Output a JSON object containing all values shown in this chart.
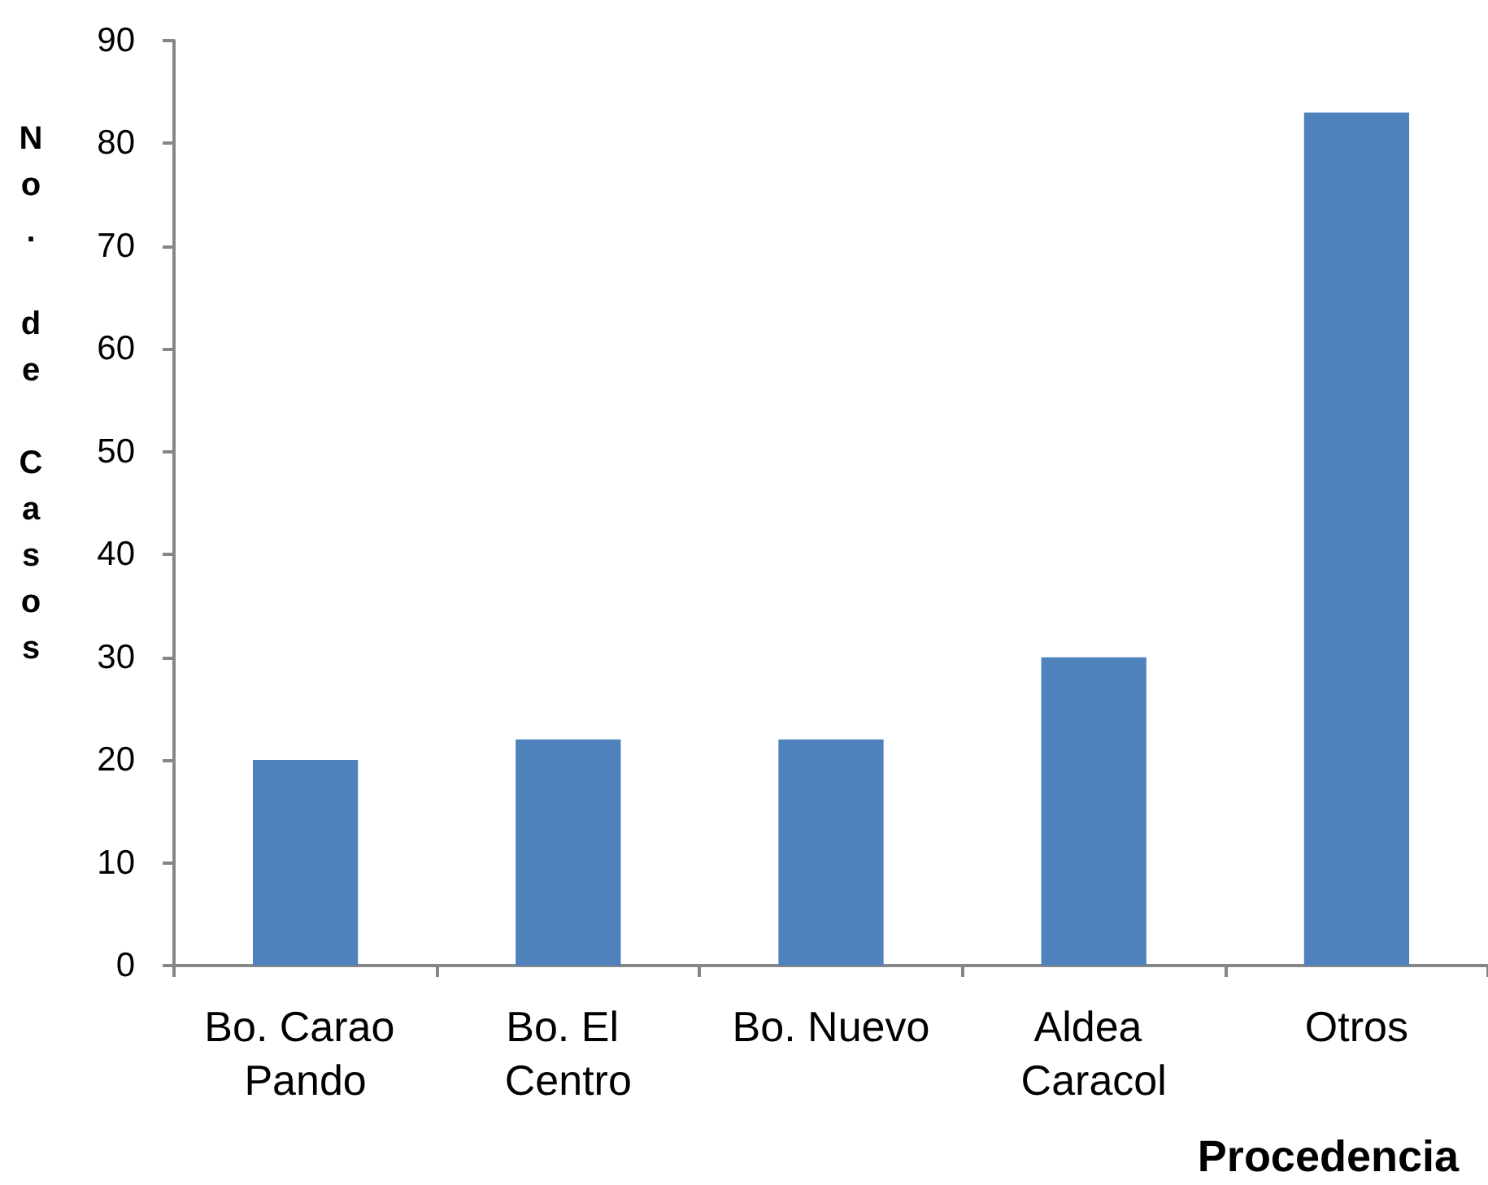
{
  "chart_data": {
    "type": "bar",
    "categories": [
      "Bo. Carao Pando",
      "Bo. El Centro",
      "Bo. Nuevo",
      "Aldea Caracol",
      "Otros"
    ],
    "values": [
      20,
      22,
      22,
      30,
      83
    ],
    "color": "#4f81bd",
    "xlabel": "Procedencia",
    "ylabel": "No. de Casos",
    "ylim": [
      0,
      90
    ],
    "yticks": [
      0,
      10,
      20,
      30,
      40,
      50,
      60,
      70,
      80,
      90
    ],
    "grid": false
  }
}
